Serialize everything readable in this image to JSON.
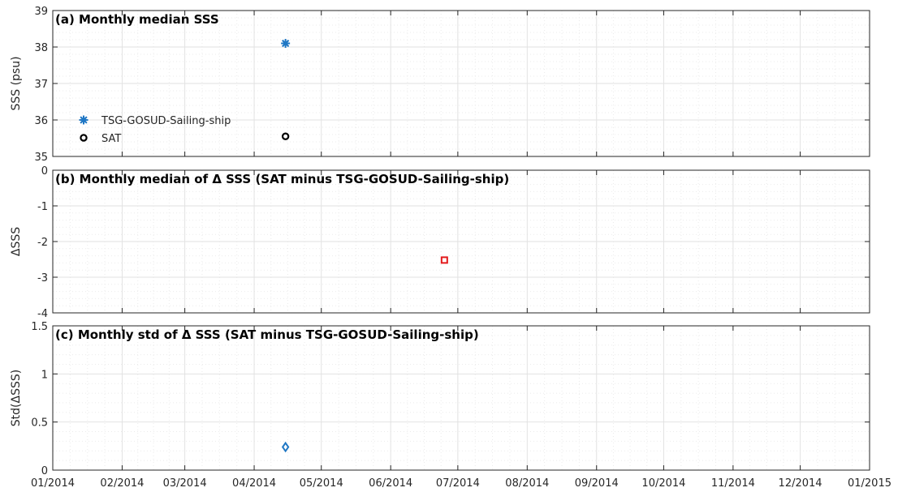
{
  "colors": {
    "tsg": "#1f77c4",
    "sat": "#000000",
    "dsss": "#e31a1c",
    "std": "#1f77c4",
    "grid": "#e2e2e2",
    "axis": "#262626"
  },
  "x_axis": {
    "ticks": [
      "01/2014",
      "02/2014",
      "03/2014",
      "04/2014",
      "05/2014",
      "06/2014",
      "07/2014",
      "08/2014",
      "09/2014",
      "10/2014",
      "11/2014",
      "12/2014",
      "01/2015"
    ]
  },
  "chart_data": [
    {
      "type": "scatter",
      "title": "(a) Monthly median SSS",
      "ylabel": "SSS (psu)",
      "xlim": [
        "2014-01-01",
        "2015-01-01"
      ],
      "ylim": [
        35,
        39
      ],
      "yticks": [
        35,
        36,
        37,
        38,
        39
      ],
      "ytick_labels": [
        "35",
        "36",
        "37",
        "38",
        "39"
      ],
      "grid": true,
      "legend": "left",
      "series": [
        {
          "name": "TSG-GOSUD-Sailing-ship",
          "marker": "star",
          "x": [
            "2014-04-15"
          ],
          "y": [
            38.1
          ]
        },
        {
          "name": "SAT",
          "marker": "circle",
          "x": [
            "2014-04-15"
          ],
          "y": [
            35.55
          ]
        }
      ]
    },
    {
      "type": "scatter",
      "title": "(b) Monthly median of Δ SSS (SAT minus TSG-GOSUD-Sailing-ship)",
      "ylabel": "ΔSSS",
      "xlim": [
        "2014-01-01",
        "2015-01-01"
      ],
      "ylim": [
        -4,
        0
      ],
      "yticks": [
        -4,
        -3,
        -2,
        -1,
        0
      ],
      "ytick_labels": [
        "-4",
        "-3",
        "-2",
        "-1",
        "0"
      ],
      "grid": true,
      "series": [
        {
          "marker": "square",
          "x": [
            "2014-06-25"
          ],
          "y": [
            -2.52
          ]
        }
      ]
    },
    {
      "type": "scatter",
      "title": "(c) Monthly std of Δ SSS (SAT minus TSG-GOSUD-Sailing-ship)",
      "ylabel": "Std(ΔSSS)",
      "xlim": [
        "2014-01-01",
        "2015-01-01"
      ],
      "ylim": [
        0,
        1.5
      ],
      "yticks": [
        0,
        0.5,
        1,
        1.5
      ],
      "ytick_labels": [
        "0",
        "0.5",
        "1",
        "1.5"
      ],
      "grid": true,
      "series": [
        {
          "marker": "diamond",
          "x": [
            "2014-04-15"
          ],
          "y": [
            0.24
          ]
        }
      ]
    }
  ]
}
